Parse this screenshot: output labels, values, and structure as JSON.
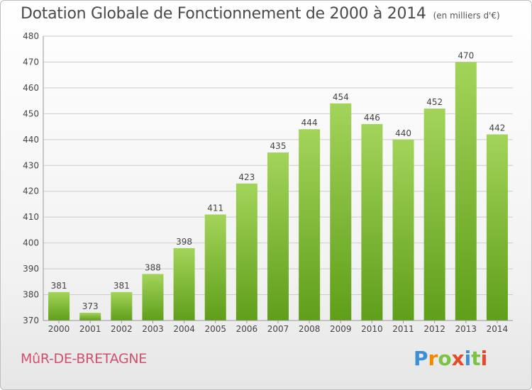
{
  "title": "Dotation Globale de Fonctionnement de 2000 à 2014",
  "subtitle": "(en milliers d'€)",
  "commune": "MûR-DE-BRETAGNE",
  "logo": {
    "letters": [
      "P",
      "r",
      "o",
      "x",
      "i",
      "t",
      "i"
    ],
    "colors": [
      "#3a8fd6",
      "#f08a00",
      "#7cc243",
      "#e24a2a",
      "#3a8fd6",
      "#7cc243",
      "#e24a2a"
    ]
  },
  "colors": {
    "bar_top": "#a3d45a",
    "bar_bottom": "#5f9e1a",
    "grid": "#cccccc"
  },
  "chart_data": {
    "type": "bar",
    "categories": [
      "2000",
      "2001",
      "2002",
      "2003",
      "2004",
      "2005",
      "2006",
      "2007",
      "2008",
      "2009",
      "2010",
      "2011",
      "2012",
      "2013",
      "2014"
    ],
    "values": [
      381,
      373,
      381,
      388,
      398,
      411,
      423,
      435,
      444,
      454,
      446,
      440,
      452,
      470,
      442
    ],
    "ylim": [
      370,
      480
    ],
    "yticks": [
      370,
      380,
      390,
      400,
      410,
      420,
      430,
      440,
      450,
      460,
      470,
      480
    ],
    "grid": true,
    "data_labels": true
  }
}
